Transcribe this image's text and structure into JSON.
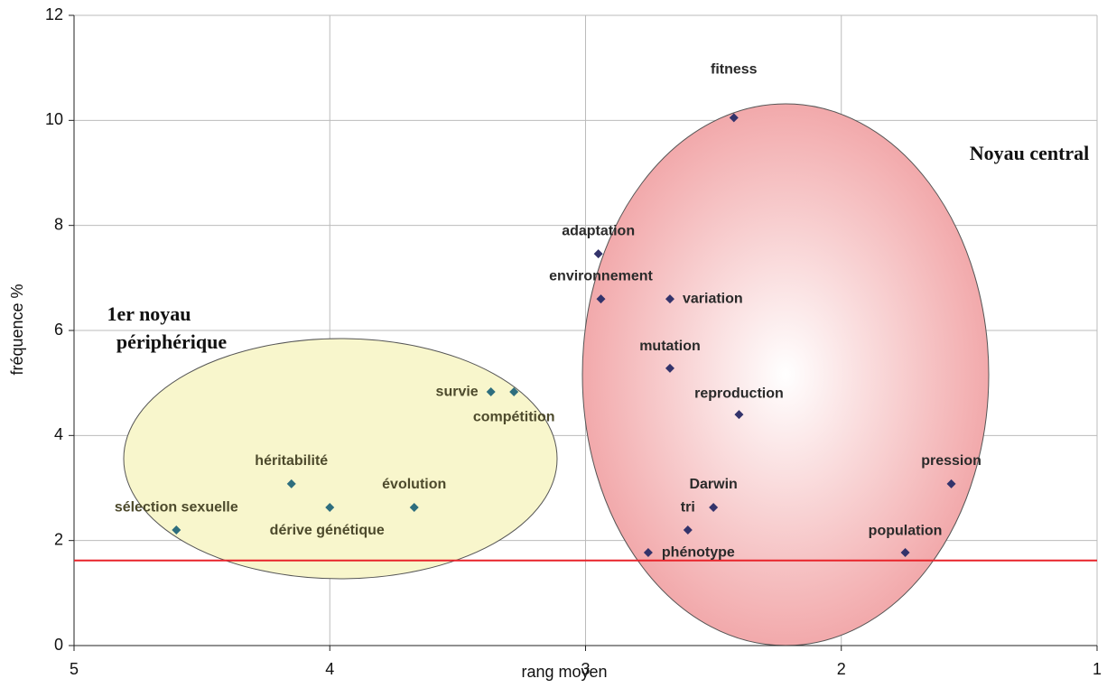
{
  "chart_data": {
    "type": "scatter",
    "x_label": "rang moyen",
    "y_label": "fréquence %",
    "xlim": [
      5,
      1
    ],
    "xticks": [
      5,
      4,
      3,
      2,
      1
    ],
    "ylim": [
      0,
      12
    ],
    "yticks": [
      0,
      2,
      4,
      6,
      8,
      10,
      12
    ],
    "grid": true,
    "reference_line": {
      "y": 1.62,
      "color": "#e8232a"
    },
    "annotations": [
      "Noyau central",
      "1er noyau",
      "périphérique"
    ],
    "series": [
      {
        "color": "#33336b",
        "label_color": "#2a2a2a",
        "labels": [
          "fitness",
          "adaptation",
          "environnement",
          "variation",
          "mutation",
          "reproduction",
          "pression",
          "Darwin",
          "tri",
          "phénotype",
          "population"
        ],
        "x": [
          2.42,
          2.95,
          2.94,
          2.67,
          2.67,
          2.4,
          1.57,
          2.5,
          2.6,
          2.755,
          1.75
        ],
        "y": [
          10.05,
          7.46,
          6.6,
          6.6,
          5.28,
          4.4,
          3.08,
          2.63,
          2.2,
          1.77,
          1.77
        ]
      },
      {
        "color": "#2e6e7e",
        "label_color": "#4d4a2c",
        "labels": [
          "survie",
          "compétition",
          "héritabilité",
          "évolution",
          "dérive génétique",
          "sélection sexuelle"
        ],
        "x": [
          3.37,
          3.28,
          4.15,
          3.67,
          4.0,
          4.6
        ],
        "y": [
          4.83,
          4.83,
          3.08,
          2.63,
          2.63,
          2.2
        ]
      }
    ]
  }
}
